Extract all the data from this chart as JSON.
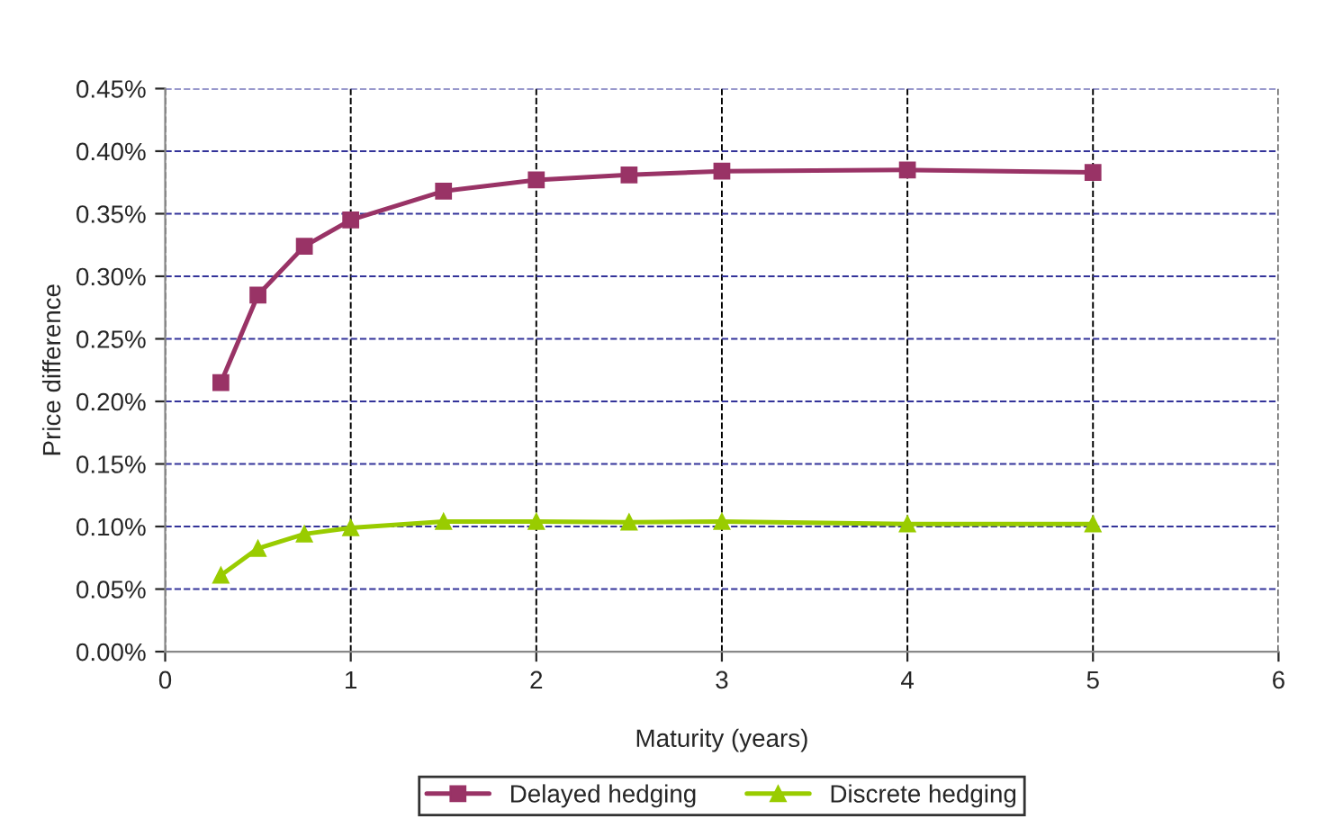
{
  "chart_data": {
    "type": "line",
    "xlabel": "Maturity (years)",
    "ylabel": "Price difference",
    "x": [
      0.3,
      0.5,
      0.75,
      1,
      1.5,
      2,
      2.5,
      3,
      4,
      5
    ],
    "series": [
      {
        "name": "Delayed hedging",
        "color": "#993366",
        "marker": "square",
        "values": [
          0.215,
          0.285,
          0.324,
          0.345,
          0.368,
          0.377,
          0.381,
          0.384,
          0.385,
          0.383
        ]
      },
      {
        "name": "Discrete hedging",
        "color": "#99cc00",
        "marker": "triangle",
        "values": [
          0.061,
          0.0825,
          0.094,
          0.099,
          0.104,
          0.104,
          0.1035,
          0.104,
          0.102,
          0.102
        ]
      }
    ],
    "xlim": [
      0,
      6
    ],
    "xticks": [
      0,
      1,
      2,
      3,
      4,
      5,
      6
    ],
    "ylim": [
      0,
      0.45
    ],
    "yticks": [
      {
        "value": 0,
        "label": "0.00%"
      },
      {
        "value": 0.05,
        "label": "0.05%"
      },
      {
        "value": 0.1,
        "label": "0.10%"
      },
      {
        "value": 0.15,
        "label": "0.15%"
      },
      {
        "value": 0.2,
        "label": "0.20%"
      },
      {
        "value": 0.25,
        "label": "0.25%"
      },
      {
        "value": 0.3,
        "label": "0.30%"
      },
      {
        "value": 0.35,
        "label": "0.35%"
      },
      {
        "value": 0.4,
        "label": "0.40%"
      },
      {
        "value": 0.45,
        "label": "0.45%"
      }
    ],
    "grid": true,
    "legend": "bottom",
    "line_style": "solid"
  }
}
